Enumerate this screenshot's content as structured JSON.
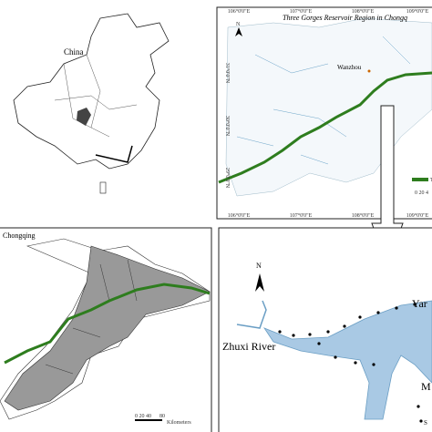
{
  "china": {
    "label": "China"
  },
  "reservoir_region": {
    "title": "Three Gorges Reservoir Region in Chongq",
    "north": "N",
    "city": "Wanzhou",
    "lat_labels": [
      "31°0'0\"N",
      "30°0'0\"N",
      "29°0'0\"N"
    ],
    "lon_labels_top": [
      "106°0'0\"E",
      "107°0'0\"E",
      "108°0'0\"E",
      "109°0'0\"E"
    ],
    "lon_labels_bottom": [
      "106°0'0\"E",
      "107°0'0\"E",
      "108°0'0\"E",
      "109°0'0\"E"
    ],
    "legend_label": "T",
    "scale": "0 20 4"
  },
  "chongqing": {
    "label": "Chongqing",
    "scale": "0 20 40",
    "scale_end": "80",
    "scale_unit": "Kilometers"
  },
  "zhuxi": {
    "north": "N",
    "river": "Zhuxi River",
    "label_right": "Yar",
    "label_m": "M",
    "label_s": "S"
  }
}
